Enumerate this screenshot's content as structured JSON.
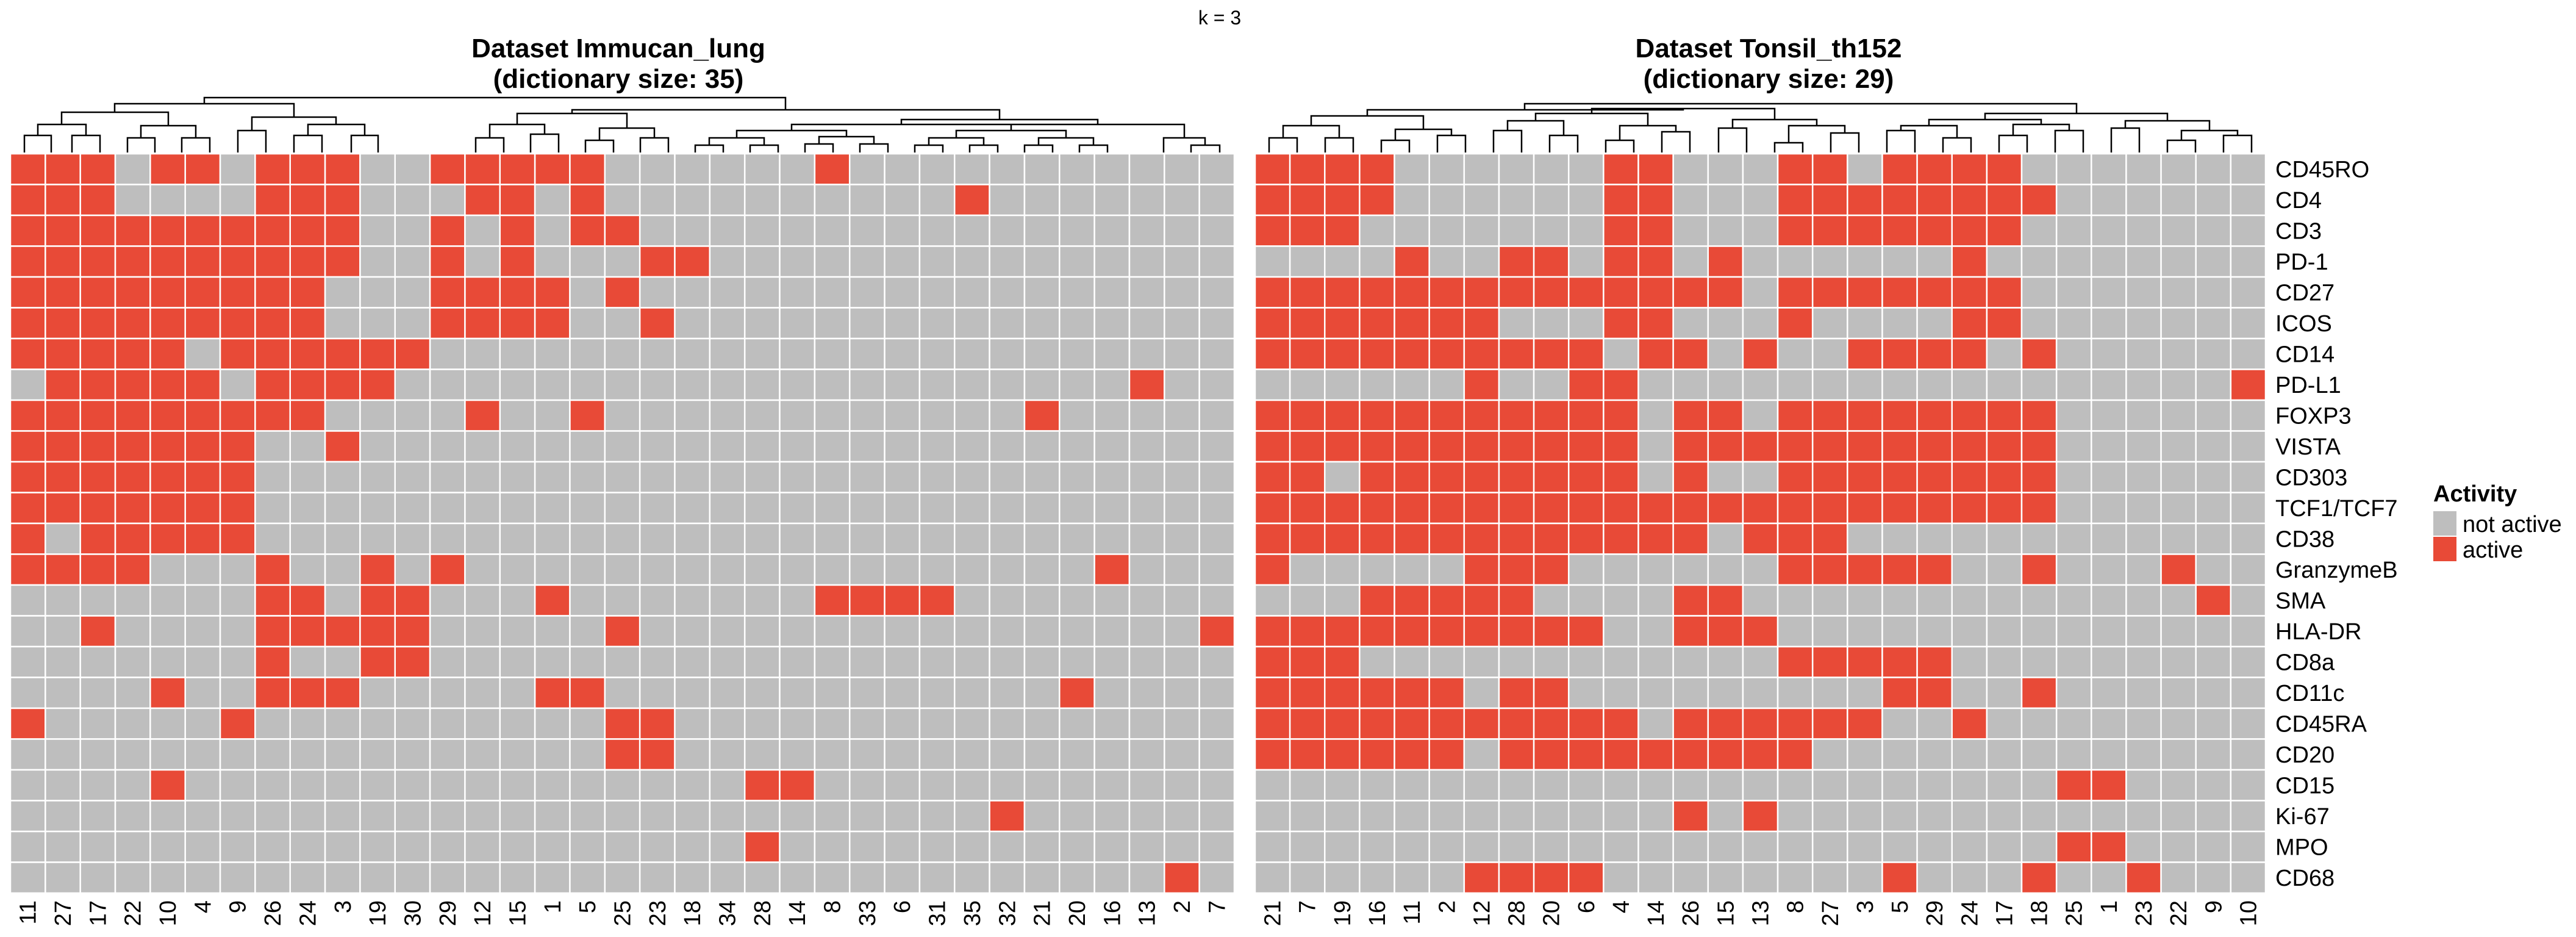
{
  "k_label": "k = 3",
  "colors": {
    "active": "#E84A37",
    "inactive": "#BEBEBE",
    "grid": "#ffffff"
  },
  "legend": {
    "title": "Activity",
    "items": [
      {
        "label": "not active",
        "color": "#BEBEBE"
      },
      {
        "label": "active",
        "color": "#E84A37"
      }
    ]
  },
  "chart_data": [
    {
      "type": "heatmap",
      "title": "Dataset Immucan_lung",
      "subtitle": "(dictionary size: 35)",
      "columns": [
        "11",
        "27",
        "17",
        "22",
        "10",
        "4",
        "9",
        "26",
        "24",
        "3",
        "19",
        "30",
        "29",
        "12",
        "15",
        "1",
        "5",
        "25",
        "23",
        "18",
        "34",
        "28",
        "14",
        "8",
        "33",
        "6",
        "31",
        "35",
        "32",
        "21",
        "20",
        "16",
        "13",
        "2",
        "7"
      ],
      "rows": [
        "CD45RO",
        "CD4",
        "CD3",
        "PD-1",
        "CD27",
        "ICOS",
        "CD14",
        "PD-L1",
        "FOXP3",
        "VISTA",
        "CD303",
        "TCF1/TCF7",
        "CD38",
        "GranzymeB",
        "SMA",
        "HLA-DR",
        "CD8a",
        "CD11c",
        "CD45RA",
        "CD20",
        "CD15",
        "Ki-67",
        "MPO",
        "CD68"
      ],
      "active": [
        [
          0,
          1,
          2,
          4,
          5,
          7,
          8,
          9,
          12,
          13,
          14,
          15,
          16,
          23
        ],
        [
          0,
          1,
          2,
          7,
          8,
          9,
          13,
          14,
          16,
          27
        ],
        [
          0,
          1,
          2,
          3,
          4,
          5,
          6,
          7,
          8,
          9,
          12,
          14,
          16,
          17
        ],
        [
          0,
          1,
          2,
          3,
          4,
          5,
          6,
          7,
          8,
          9,
          12,
          14,
          18,
          19
        ],
        [
          0,
          1,
          2,
          3,
          4,
          5,
          6,
          7,
          8,
          12,
          13,
          14,
          15,
          17
        ],
        [
          0,
          1,
          2,
          3,
          4,
          5,
          6,
          7,
          8,
          12,
          13,
          14,
          15,
          18
        ],
        [
          0,
          1,
          2,
          3,
          4,
          6,
          7,
          8,
          9,
          10,
          11
        ],
        [
          1,
          2,
          3,
          4,
          5,
          7,
          8,
          9,
          10,
          32
        ],
        [
          0,
          1,
          2,
          3,
          4,
          5,
          6,
          7,
          8,
          13,
          16,
          29
        ],
        [
          0,
          1,
          2,
          3,
          4,
          5,
          6,
          9
        ],
        [
          0,
          1,
          2,
          3,
          4,
          5,
          6
        ],
        [
          0,
          1,
          2,
          3,
          4,
          5,
          6
        ],
        [
          0,
          2,
          3,
          4,
          5,
          6
        ],
        [
          0,
          1,
          2,
          3,
          7,
          10,
          12,
          31
        ],
        [
          7,
          8,
          10,
          11,
          15,
          23,
          24,
          25,
          26
        ],
        [
          2,
          7,
          8,
          9,
          10,
          11,
          17,
          34
        ],
        [
          7,
          10,
          11
        ],
        [
          4,
          7,
          8,
          9,
          15,
          16,
          30
        ],
        [
          0,
          6,
          17,
          18
        ],
        [
          17,
          18
        ],
        [
          4,
          21,
          22
        ],
        [
          28
        ],
        [
          21
        ],
        [
          33
        ]
      ]
    },
    {
      "type": "heatmap",
      "title": "Dataset Tonsil_th152",
      "subtitle": "(dictionary size: 29)",
      "columns": [
        "21",
        "7",
        "19",
        "16",
        "11",
        "2",
        "12",
        "28",
        "20",
        "6",
        "4",
        "14",
        "26",
        "15",
        "13",
        "8",
        "27",
        "3",
        "5",
        "29",
        "24",
        "17",
        "18",
        "25",
        "1",
        "23",
        "22",
        "9",
        "10"
      ],
      "rows": [
        "CD45RO",
        "CD4",
        "CD3",
        "PD-1",
        "CD27",
        "ICOS",
        "CD14",
        "PD-L1",
        "FOXP3",
        "VISTA",
        "CD303",
        "TCF1/TCF7",
        "CD38",
        "GranzymeB",
        "SMA",
        "HLA-DR",
        "CD8a",
        "CD11c",
        "CD45RA",
        "CD20",
        "CD15",
        "Ki-67",
        "MPO",
        "CD68"
      ],
      "active": [
        [
          0,
          1,
          2,
          3,
          10,
          11,
          15,
          16,
          18,
          19,
          20,
          21
        ],
        [
          0,
          1,
          2,
          3,
          10,
          11,
          15,
          16,
          17,
          18,
          19,
          20,
          21,
          22
        ],
        [
          0,
          1,
          2,
          10,
          11,
          15,
          16,
          17,
          18,
          19,
          20,
          21
        ],
        [
          4,
          7,
          8,
          10,
          11,
          13,
          20
        ],
        [
          0,
          1,
          2,
          3,
          4,
          5,
          6,
          7,
          8,
          9,
          10,
          11,
          12,
          13,
          15,
          16,
          17,
          18,
          19,
          20,
          21
        ],
        [
          0,
          1,
          2,
          3,
          4,
          5,
          6,
          10,
          11,
          15,
          20,
          21
        ],
        [
          0,
          1,
          2,
          3,
          4,
          5,
          6,
          7,
          8,
          9,
          11,
          12,
          14,
          17,
          18,
          19,
          20,
          22
        ],
        [
          6,
          9,
          10,
          28
        ],
        [
          0,
          1,
          2,
          3,
          4,
          5,
          6,
          7,
          8,
          9,
          10,
          12,
          13,
          15,
          16,
          17,
          18,
          19,
          20,
          21,
          22
        ],
        [
          0,
          1,
          2,
          3,
          4,
          5,
          6,
          7,
          8,
          9,
          10,
          12,
          13,
          14,
          15,
          16,
          17,
          18,
          19,
          20,
          21,
          22
        ],
        [
          0,
          1,
          3,
          4,
          5,
          6,
          7,
          8,
          9,
          10,
          12,
          15,
          16,
          17,
          18,
          19,
          20,
          21,
          22
        ],
        [
          0,
          1,
          2,
          3,
          4,
          5,
          6,
          7,
          8,
          9,
          10,
          11,
          12,
          13,
          14,
          15,
          16,
          17,
          18,
          19,
          20,
          21,
          22
        ],
        [
          0,
          1,
          2,
          3,
          4,
          5,
          6,
          7,
          8,
          9,
          10,
          11,
          12,
          14,
          15,
          16
        ],
        [
          0,
          6,
          7,
          8,
          15,
          16,
          17,
          18,
          19,
          22,
          26
        ],
        [
          3,
          4,
          5,
          6,
          7,
          12,
          13,
          27
        ],
        [
          0,
          1,
          2,
          3,
          4,
          5,
          6,
          7,
          8,
          9,
          12,
          13,
          14
        ],
        [
          0,
          1,
          2,
          15,
          16,
          17,
          18,
          19
        ],
        [
          0,
          1,
          2,
          3,
          4,
          5,
          7,
          8,
          18,
          19,
          22
        ],
        [
          0,
          1,
          2,
          3,
          4,
          5,
          6,
          7,
          8,
          9,
          10,
          12,
          13,
          14,
          15,
          16,
          17,
          20
        ],
        [
          0,
          1,
          2,
          3,
          4,
          5,
          7,
          8,
          9,
          10,
          11,
          12,
          13,
          14,
          15
        ],
        [
          23,
          24
        ],
        [
          12,
          14
        ],
        [
          23,
          24
        ],
        [
          6,
          7,
          8,
          9,
          18,
          22,
          25
        ]
      ]
    }
  ]
}
